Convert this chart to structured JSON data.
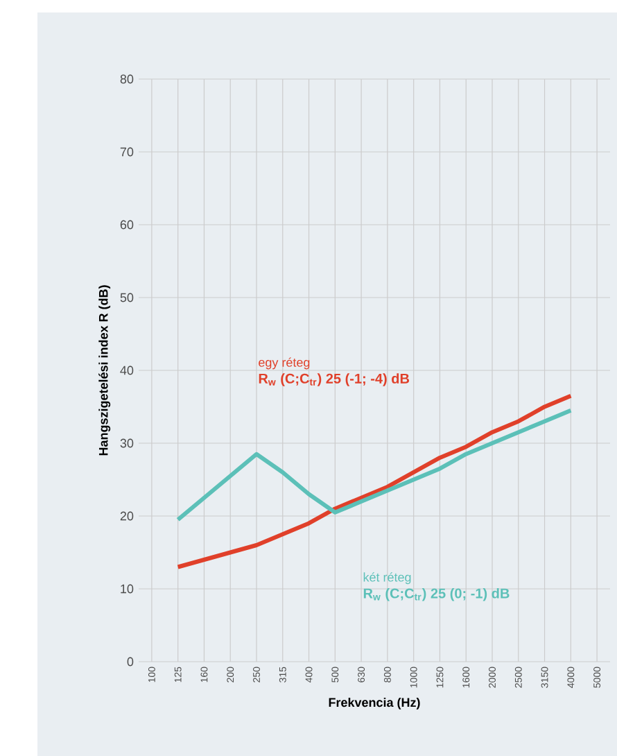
{
  "chart_data": {
    "type": "line",
    "xlabel": "Frekvencia (Hz)",
    "ylabel": "Hangszigetelési index R (dB)",
    "categories": [
      "100",
      "125",
      "160",
      "200",
      "250",
      "315",
      "400",
      "500",
      "630",
      "800",
      "1000",
      "1250",
      "1600",
      "2000",
      "2500",
      "3150",
      "4000",
      "5000"
    ],
    "series": [
      {
        "name": "egy réteg",
        "color": "#e0402a",
        "values": [
          null,
          13,
          14,
          15,
          16,
          17.5,
          19,
          21,
          22.5,
          24,
          26,
          28,
          29.5,
          31.5,
          33,
          35,
          36.5,
          null
        ]
      },
      {
        "name": "két réteg",
        "color": "#5cc0b8",
        "values": [
          null,
          19.5,
          22.5,
          25.5,
          28.5,
          26,
          23,
          20.5,
          22,
          23.5,
          25,
          26.5,
          28.5,
          30,
          31.5,
          33,
          34.5,
          null
        ]
      }
    ],
    "annotations": [
      "R$_{w}$ (C;C$_{tr}$) 25 (-1; -4) dB",
      "R$_{w}$ (C;C$_{tr}$) 25 (0; -1) dB"
    ],
    "ylim": [
      0,
      80
    ],
    "yticks": [
      0,
      10,
      20,
      30,
      40,
      50,
      60,
      70,
      80
    ],
    "grid": true,
    "marker": "none",
    "line_style": "solid"
  }
}
